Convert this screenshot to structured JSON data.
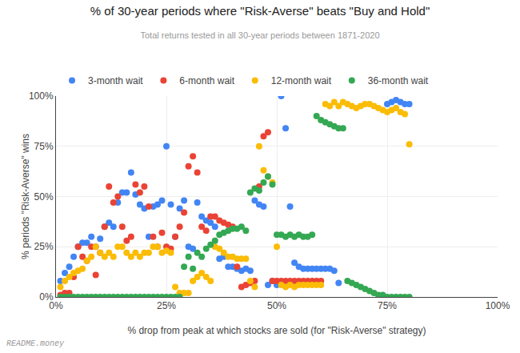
{
  "chart_data": {
    "type": "scatter",
    "title": "% of 30-year periods where \"Risk-Averse\" beats \"Buy and Hold\"",
    "subtitle": "Total returns tested in all 30-year periods between 1871-2020",
    "xlabel": "% drop from peak at which stocks are sold (for \"Risk-Averse\" strategy)",
    "ylabel": "% periods \"Risk-Averse\" wins",
    "annotations": [
      "README.money"
    ],
    "xlim": [
      0,
      1.0
    ],
    "ylim": [
      0,
      1.0
    ],
    "xticks": [
      {
        "value": 0,
        "label": "0%"
      },
      {
        "value": 0.25,
        "label": "25%"
      },
      {
        "value": 0.5,
        "label": "50%"
      },
      {
        "value": 0.75,
        "label": "75%"
      },
      {
        "value": 1.0,
        "label": "100%"
      }
    ],
    "yticks": [
      {
        "value": 0,
        "label": "0%"
      },
      {
        "value": 0.25,
        "label": "25%"
      },
      {
        "value": 0.5,
        "label": "50%"
      },
      {
        "value": 0.75,
        "label": "75%"
      },
      {
        "value": 1.0,
        "label": "100%"
      }
    ],
    "grid": true,
    "legend": "top",
    "marker": "circle",
    "series": [
      {
        "name": "3-month wait",
        "color": "#4285F4",
        "x": [
          0.01,
          0.02,
          0.03,
          0.04,
          0.05,
          0.06,
          0.07,
          0.08,
          0.09,
          0.1,
          0.11,
          0.12,
          0.13,
          0.14,
          0.15,
          0.16,
          0.17,
          0.18,
          0.19,
          0.2,
          0.21,
          0.22,
          0.23,
          0.24,
          0.25,
          0.26,
          0.27,
          0.28,
          0.29,
          0.3,
          0.31,
          0.32,
          0.33,
          0.34,
          0.35,
          0.36,
          0.37,
          0.38,
          0.39,
          0.4,
          0.41,
          0.42,
          0.43,
          0.44,
          0.45,
          0.46,
          0.47,
          0.48,
          0.49,
          0.5,
          0.51,
          0.52,
          0.53,
          0.54,
          0.55,
          0.56,
          0.57,
          0.58,
          0.59,
          0.6,
          0.61,
          0.62,
          0.63,
          0.64,
          0.75,
          0.76,
          0.77,
          0.78,
          0.79,
          0.8
        ],
        "values": [
          0.08,
          0.12,
          0.15,
          0.2,
          0.25,
          0.27,
          0.27,
          0.3,
          0.25,
          0.29,
          0.35,
          0.37,
          0.35,
          0.47,
          0.52,
          0.52,
          0.62,
          0.51,
          0.46,
          0.44,
          0.3,
          0.45,
          0.46,
          0.48,
          0.75,
          0.46,
          0.3,
          0.44,
          0.48,
          0.25,
          0.24,
          0.47,
          0.4,
          0.38,
          0.37,
          0.35,
          0.19,
          0.2,
          0.15,
          0.15,
          0.14,
          0.13,
          0.14,
          0.13,
          0.48,
          0.46,
          0.45,
          0.06,
          0.08,
          0.06,
          1.0,
          0.84,
          0.45,
          0.17,
          0.15,
          0.14,
          0.14,
          0.14,
          0.14,
          0.14,
          0.14,
          0.14,
          0.13,
          0.07,
          0.96,
          0.97,
          0.98,
          0.97,
          0.96,
          0.96
        ]
      },
      {
        "name": "6-month wait",
        "color": "#EA4335",
        "x": [
          0.01,
          0.02,
          0.03,
          0.04,
          0.05,
          0.06,
          0.07,
          0.08,
          0.09,
          0.1,
          0.11,
          0.12,
          0.13,
          0.14,
          0.15,
          0.16,
          0.17,
          0.18,
          0.19,
          0.2,
          0.21,
          0.22,
          0.23,
          0.24,
          0.25,
          0.26,
          0.27,
          0.28,
          0.29,
          0.3,
          0.31,
          0.32,
          0.33,
          0.34,
          0.35,
          0.36,
          0.37,
          0.38,
          0.39,
          0.4,
          0.41,
          0.42,
          0.43,
          0.44,
          0.45,
          0.46,
          0.47,
          0.48,
          0.49,
          0.5,
          0.51,
          0.52,
          0.53,
          0.54,
          0.55,
          0.56,
          0.57,
          0.58,
          0.59,
          0.6
        ],
        "values": [
          0.01,
          0.02,
          0.02,
          0.1,
          0.25,
          0.2,
          0.18,
          0.25,
          0.11,
          0.22,
          0.35,
          0.55,
          0.47,
          0.5,
          0.35,
          0.28,
          0.3,
          0.56,
          0.52,
          0.55,
          0.45,
          0.3,
          0.25,
          0.32,
          0.25,
          0.24,
          0.3,
          0.35,
          0.42,
          0.65,
          0.7,
          0.62,
          0.35,
          0.33,
          0.4,
          0.4,
          0.38,
          0.37,
          0.36,
          0.35,
          0.15,
          0.05,
          0.06,
          0.07,
          0.08,
          0.55,
          0.8,
          0.82,
          0.08,
          0.08,
          0.08,
          0.08,
          0.08,
          0.08,
          0.08,
          0.08,
          0.08,
          0.08,
          0.08,
          0.08
        ]
      },
      {
        "name": "12-month wait",
        "color": "#FBBC05",
        "x": [
          0.01,
          0.02,
          0.03,
          0.04,
          0.05,
          0.06,
          0.07,
          0.08,
          0.09,
          0.1,
          0.11,
          0.12,
          0.13,
          0.14,
          0.15,
          0.16,
          0.17,
          0.18,
          0.19,
          0.2,
          0.21,
          0.22,
          0.23,
          0.24,
          0.25,
          0.26,
          0.27,
          0.28,
          0.29,
          0.3,
          0.31,
          0.32,
          0.33,
          0.34,
          0.35,
          0.36,
          0.37,
          0.38,
          0.39,
          0.4,
          0.41,
          0.42,
          0.43,
          0.44,
          0.45,
          0.46,
          0.47,
          0.48,
          0.49,
          0.5,
          0.51,
          0.52,
          0.53,
          0.54,
          0.55,
          0.56,
          0.57,
          0.58,
          0.59,
          0.6,
          0.61,
          0.62,
          0.63,
          0.64,
          0.65,
          0.66,
          0.67,
          0.68,
          0.69,
          0.7,
          0.71,
          0.72,
          0.73,
          0.74,
          0.75,
          0.76,
          0.77,
          0.78,
          0.79,
          0.8
        ],
        "values": [
          0.05,
          0.08,
          0.1,
          0.12,
          0.13,
          0.14,
          0.18,
          0.2,
          0.25,
          0.22,
          0.2,
          0.22,
          0.2,
          0.25,
          0.25,
          0.22,
          0.2,
          0.22,
          0.2,
          0.22,
          0.22,
          0.25,
          0.25,
          0.22,
          0.23,
          0.22,
          0.05,
          0.02,
          0.02,
          0.02,
          0.08,
          0.1,
          0.12,
          0.1,
          0.08,
          0.25,
          0.24,
          0.22,
          0.2,
          0.2,
          0.19,
          0.19,
          0.19,
          0.08,
          0.05,
          0.75,
          0.63,
          0.6,
          0.57,
          0.25,
          0.06,
          0.05,
          0.06,
          0.05,
          0.06,
          0.06,
          0.06,
          0.06,
          0.06,
          0.06,
          0.96,
          0.95,
          0.97,
          0.95,
          0.97,
          0.96,
          0.95,
          0.94,
          0.95,
          0.96,
          0.96,
          0.95,
          0.94,
          0.93,
          0.92,
          0.93,
          0.94,
          0.92,
          0.91,
          0.76
        ]
      },
      {
        "name": "36-month wait",
        "color": "#34A853",
        "x": [
          0.01,
          0.02,
          0.03,
          0.04,
          0.05,
          0.06,
          0.07,
          0.08,
          0.09,
          0.1,
          0.11,
          0.12,
          0.13,
          0.14,
          0.15,
          0.16,
          0.17,
          0.18,
          0.19,
          0.2,
          0.21,
          0.22,
          0.23,
          0.24,
          0.25,
          0.26,
          0.27,
          0.28,
          0.29,
          0.3,
          0.31,
          0.32,
          0.33,
          0.34,
          0.35,
          0.36,
          0.37,
          0.38,
          0.39,
          0.4,
          0.41,
          0.42,
          0.43,
          0.44,
          0.45,
          0.46,
          0.47,
          0.48,
          0.49,
          0.5,
          0.51,
          0.52,
          0.53,
          0.54,
          0.55,
          0.56,
          0.57,
          0.58,
          0.59,
          0.6,
          0.61,
          0.62,
          0.63,
          0.64,
          0.65,
          0.66,
          0.67,
          0.68,
          0.69,
          0.7,
          0.71,
          0.72,
          0.73,
          0.74,
          0.75,
          0.76,
          0.77,
          0.78,
          0.79,
          0.8
        ],
        "values": [
          0.0,
          0.0,
          0.0,
          0.0,
          0.0,
          0.0,
          0.0,
          0.0,
          0.0,
          0.0,
          0.0,
          0.0,
          0.0,
          0.0,
          0.0,
          0.0,
          0.0,
          0.0,
          0.0,
          0.0,
          0.0,
          0.0,
          0.0,
          0.0,
          0.0,
          0.0,
          0.0,
          0.0,
          0.15,
          0.2,
          0.14,
          0.22,
          0.2,
          0.24,
          0.26,
          0.28,
          0.31,
          0.32,
          0.33,
          0.34,
          0.34,
          0.35,
          0.33,
          0.52,
          0.54,
          0.53,
          0.57,
          0.6,
          0.56,
          0.31,
          0.31,
          0.3,
          0.31,
          0.3,
          0.31,
          0.3,
          0.3,
          0.31,
          0.9,
          0.88,
          0.87,
          0.86,
          0.85,
          0.84,
          0.84,
          0.08,
          0.07,
          0.06,
          0.05,
          0.04,
          0.03,
          0.02,
          0.01,
          0.01,
          0.0,
          0.0,
          0.0,
          0.0,
          0.0,
          0.0
        ]
      }
    ]
  }
}
